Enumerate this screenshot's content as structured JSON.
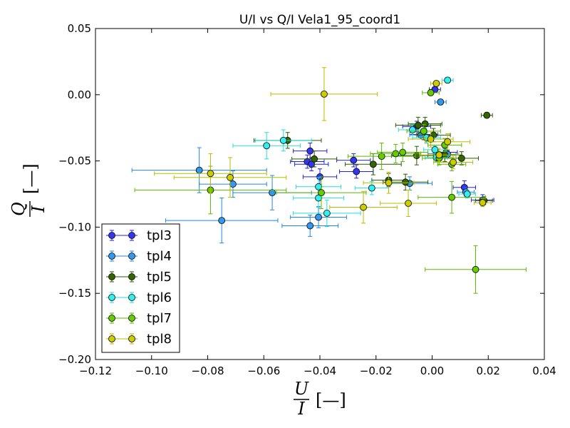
{
  "chart_data": {
    "type": "scatter",
    "title": "U/I vs Q/I Vela1_95_coord1",
    "xlabel_num": "U",
    "xlabel_den": "I",
    "xlabel_unit": "[—]",
    "ylabel_num": "Q",
    "ylabel_den": "I",
    "ylabel_unit": "[—]",
    "xlim": [
      -0.12,
      0.04
    ],
    "ylim": [
      -0.2,
      0.05
    ],
    "xticks": [
      -0.12,
      -0.1,
      -0.08,
      -0.06,
      -0.04,
      -0.02,
      0.0,
      0.02,
      0.04
    ],
    "xtick_labels": [
      "−0.12",
      "−0.10",
      "−0.08",
      "−0.06",
      "−0.04",
      "−0.02",
      "0.00",
      "0.02",
      "0.04"
    ],
    "yticks": [
      0.05,
      0.0,
      -0.05,
      -0.1,
      -0.15,
      -0.2
    ],
    "ytick_labels": [
      "0.05",
      "0.00",
      "−0.05",
      "−0.10",
      "−0.15",
      "−0.20"
    ],
    "grid": false,
    "legend_position": "lower-left",
    "series": [
      {
        "name": "tpl3",
        "color": "#3535ee",
        "ecolor": "#2222dd",
        "points": [
          [
            0.001,
            0.004,
            0.002,
            0.002
          ],
          [
            -0.0435,
            -0.0425,
            0.006,
            0.006
          ],
          [
            -0.0445,
            -0.0505,
            0.006,
            0.005
          ],
          [
            -0.043,
            -0.0525,
            0.006,
            0.005
          ],
          [
            -0.04,
            -0.062,
            0.006,
            0.006
          ],
          [
            -0.028,
            -0.0495,
            0.006,
            0.005
          ],
          [
            -0.027,
            -0.058,
            0.006,
            0.005
          ],
          [
            -0.0055,
            -0.024,
            0.005,
            0.004
          ],
          [
            -0.003,
            -0.03,
            0.005,
            0.004
          ],
          [
            0.005,
            -0.0435,
            0.004,
            0.004
          ],
          [
            0.0115,
            -0.07,
            0.004,
            0.005
          ],
          [
            0.018,
            -0.0795,
            0.004,
            0.004
          ]
        ]
      },
      {
        "name": "tpl4",
        "color": "#3399ee",
        "ecolor": "#2288dd",
        "points": [
          [
            0.003,
            -0.0055,
            0.002,
            0.002
          ],
          [
            -0.083,
            -0.057,
            0.024,
            0.017
          ],
          [
            -0.075,
            -0.095,
            0.02,
            0.017
          ],
          [
            -0.071,
            -0.0675,
            0.012,
            0.01
          ],
          [
            -0.057,
            -0.074,
            0.014,
            0.013
          ],
          [
            -0.0435,
            -0.099,
            0.01,
            0.008
          ],
          [
            -0.0405,
            -0.0925,
            0.01,
            0.008
          ],
          [
            -0.008,
            -0.067,
            0.008,
            0.005
          ],
          [
            -0.004,
            -0.0305,
            0.004,
            0.003
          ],
          [
            0.0015,
            -0.0445,
            0.003,
            0.003
          ],
          [
            0.0055,
            -0.045,
            0.003,
            0.003
          ],
          [
            0.012,
            -0.0735,
            0.003,
            0.003
          ]
        ]
      },
      {
        "name": "tpl5",
        "color": "#336600",
        "ecolor": "#2a5a00",
        "points": [
          [
            0.0195,
            -0.0155,
            0.002,
            0.002
          ],
          [
            -0.0515,
            -0.0345,
            0.012,
            0.006
          ],
          [
            -0.042,
            -0.0485,
            0.008,
            0.006
          ],
          [
            -0.021,
            -0.0525,
            0.01,
            0.008
          ],
          [
            -0.0155,
            -0.0645,
            0.006,
            0.005
          ],
          [
            -0.0095,
            -0.066,
            0.008,
            0.006
          ],
          [
            -0.0055,
            -0.046,
            0.009,
            0.007
          ],
          [
            -0.005,
            -0.023,
            0.008,
            0.006
          ],
          [
            -0.0025,
            -0.022,
            0.006,
            0.005
          ],
          [
            0.0005,
            -0.0305,
            0.006,
            0.005
          ],
          [
            0.0045,
            -0.0455,
            0.006,
            0.005
          ],
          [
            0.0105,
            -0.048,
            0.006,
            0.005
          ],
          [
            0.0185,
            -0.08,
            0.003,
            0.003
          ]
        ]
      },
      {
        "name": "tpl6",
        "color": "#33eeee",
        "ecolor": "#22dddd",
        "points": [
          [
            0.0055,
            0.011,
            0.002,
            0.002
          ],
          [
            -0.059,
            -0.0385,
            0.012,
            0.01
          ],
          [
            -0.053,
            -0.0345,
            0.01,
            0.008
          ],
          [
            -0.0405,
            -0.0695,
            0.008,
            0.007
          ],
          [
            -0.0405,
            -0.078,
            0.009,
            0.007
          ],
          [
            -0.0375,
            -0.0895,
            0.012,
            0.01
          ],
          [
            -0.0215,
            -0.0705,
            0.006,
            0.005
          ],
          [
            -0.007,
            -0.0265,
            0.005,
            0.004
          ],
          [
            -0.002,
            -0.0325,
            0.005,
            0.004
          ],
          [
            0.001,
            -0.0415,
            0.004,
            0.003
          ],
          [
            0.0015,
            -0.0475,
            0.004,
            0.003
          ],
          [
            0.0125,
            -0.075,
            0.003,
            0.003
          ]
        ]
      },
      {
        "name": "tpl7",
        "color": "#66cc00",
        "ecolor": "#5ab800",
        "points": [
          [
            -0.0005,
            0.0015,
            0.003,
            0.002
          ],
          [
            -0.079,
            -0.072,
            0.027,
            0.018
          ],
          [
            -0.0395,
            -0.074,
            0.016,
            0.012
          ],
          [
            -0.018,
            -0.0465,
            0.012,
            0.01
          ],
          [
            -0.013,
            -0.0445,
            0.009,
            0.007
          ],
          [
            -0.0105,
            -0.0435,
            0.009,
            0.007
          ],
          [
            -0.003,
            -0.0275,
            0.006,
            0.005
          ],
          [
            0.0025,
            -0.048,
            0.006,
            0.005
          ],
          [
            0.0045,
            -0.038,
            0.006,
            0.005
          ],
          [
            0.007,
            -0.0525,
            0.005,
            0.005
          ],
          [
            0.007,
            -0.0775,
            0.012,
            0.012
          ],
          [
            0.0155,
            -0.132,
            0.018,
            0.018
          ]
        ]
      },
      {
        "name": "tpl8",
        "color": "#cccc00",
        "ecolor": "#bbbb00",
        "points": [
          [
            -0.0385,
            0.0005,
            0.019,
            0.02
          ],
          [
            0.0015,
            0.0085,
            0.002,
            0.002
          ],
          [
            -0.079,
            -0.0595,
            0.02,
            0.015
          ],
          [
            -0.072,
            -0.0625,
            0.02,
            0.015
          ],
          [
            -0.0245,
            -0.085,
            0.012,
            0.012
          ],
          [
            -0.0155,
            -0.0665,
            0.009,
            0.008
          ],
          [
            -0.0085,
            -0.082,
            0.01,
            0.01
          ],
          [
            -0.0005,
            -0.0335,
            0.008,
            0.006
          ],
          [
            0.0025,
            -0.0455,
            0.007,
            0.005
          ],
          [
            0.0055,
            -0.0355,
            0.008,
            0.006
          ],
          [
            0.0075,
            -0.051,
            0.007,
            0.005
          ],
          [
            0.018,
            -0.0815,
            0.003,
            0.003
          ]
        ]
      }
    ]
  }
}
